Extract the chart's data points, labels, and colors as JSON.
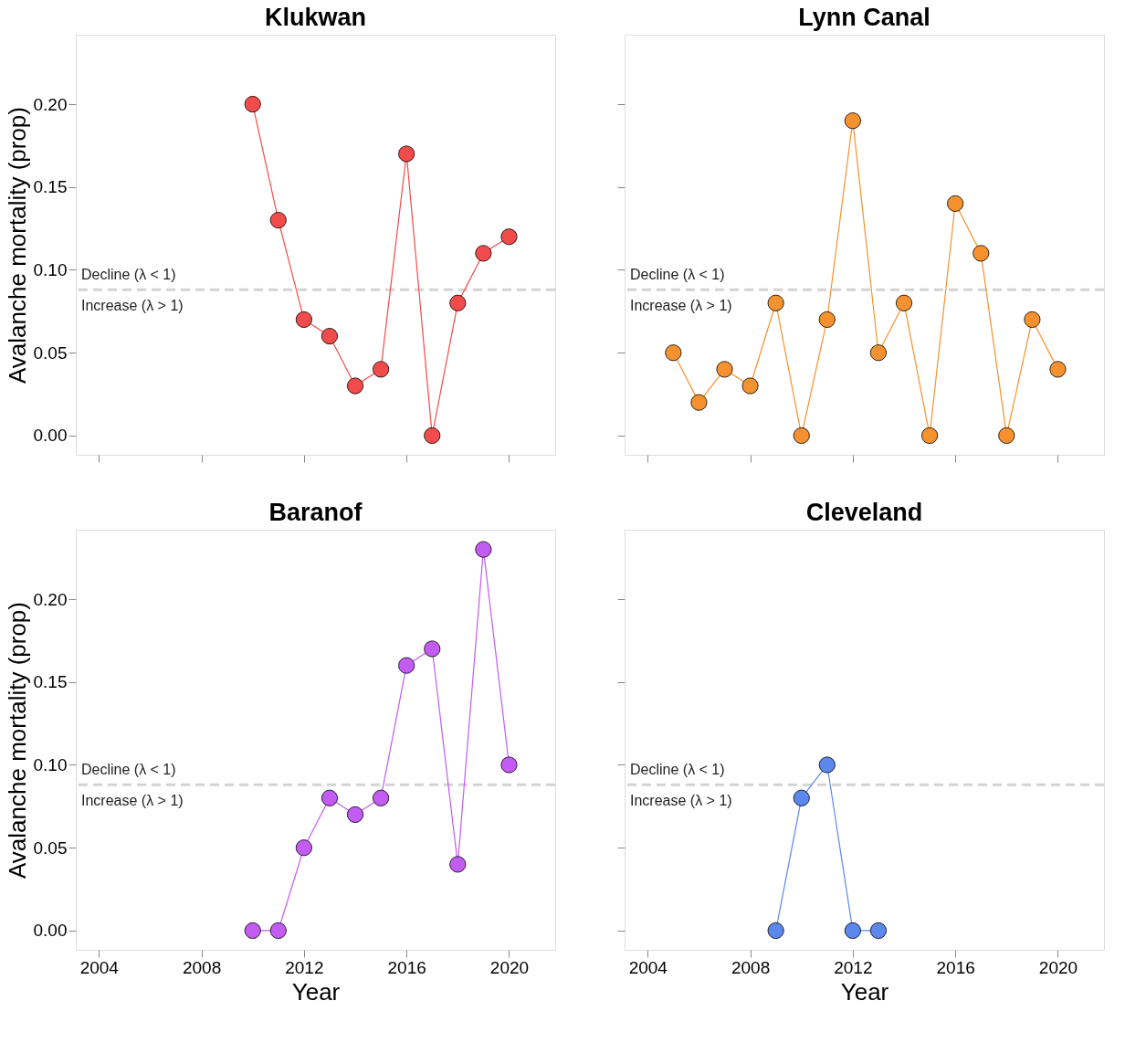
{
  "chart_data": [
    {
      "type": "line",
      "title": "Klukwan",
      "ylabel": "Avalanche mortality (prop)",
      "x": [
        2010,
        2011,
        2012,
        2013,
        2014,
        2015,
        2016,
        2017,
        2018,
        2019,
        2020
      ],
      "series": [
        {
          "color": "#f24b4b",
          "values": [
            0.2,
            0.13,
            0.07,
            0.06,
            0.03,
            0.04,
            0.17,
            0.0,
            0.08,
            0.11,
            0.12
          ]
        }
      ],
      "xlim": [
        2003.1,
        2021.8
      ],
      "xticks": [
        {
          "value": 2004,
          "label": null
        },
        {
          "value": 2008,
          "label": null
        },
        {
          "value": 2012,
          "label": null
        },
        {
          "value": 2016,
          "label": null
        },
        {
          "value": 2020,
          "label": null
        }
      ],
      "ylim": [
        -0.0116,
        0.2419
      ],
      "yticks": [
        {
          "value": 0,
          "label": "0.00"
        },
        {
          "value": 0.05,
          "label": "0.05"
        },
        {
          "value": 0.1,
          "label": "0.10"
        },
        {
          "value": 0.15,
          "label": "0.15"
        },
        {
          "value": 0.2,
          "label": "0.20"
        }
      ],
      "tick_labels": "y",
      "marker": "circle",
      "line_style": "solid",
      "ref_lines": [
        {
          "axis": "y",
          "value": 0.088,
          "label": "Decline (λ < 1)",
          "color": "#d3d3d3",
          "line_style": "dashed"
        }
      ],
      "annotations": [
        {
          "text": "Increase (λ > 1)"
        }
      ]
    },
    {
      "type": "line",
      "title": "Lynn Canal",
      "x": [
        2005,
        2006,
        2007,
        2008,
        2009,
        2010,
        2011,
        2012,
        2013,
        2014,
        2015,
        2016,
        2017,
        2018,
        2019,
        2020
      ],
      "series": [
        {
          "color": "#f5922f",
          "values": [
            0.05,
            0.02,
            0.04,
            0.03,
            0.08,
            0.0,
            0.07,
            0.19,
            0.05,
            0.08,
            0.0,
            0.14,
            0.11,
            0.0,
            0.07,
            0.04
          ]
        }
      ],
      "xlim": [
        2003.1,
        2021.8
      ],
      "xticks": [
        {
          "value": 2004,
          "label": null
        },
        {
          "value": 2008,
          "label": null
        },
        {
          "value": 2012,
          "label": null
        },
        {
          "value": 2016,
          "label": null
        },
        {
          "value": 2020,
          "label": null
        }
      ],
      "ylim": [
        -0.0116,
        0.2419
      ],
      "yticks": [
        {
          "value": 0.0,
          "label": null
        },
        {
          "value": 0.05,
          "label": null
        },
        {
          "value": 0.1,
          "label": null
        },
        {
          "value": 0.15,
          "label": null
        },
        {
          "value": 0.2,
          "label": null
        }
      ],
      "tick_labels": false,
      "marker": "circle",
      "line_style": "solid",
      "ref_lines": [
        {
          "axis": "y",
          "value": 0.088,
          "label": "Decline (λ < 1)",
          "color": "#d3d3d3",
          "line_style": "dashed"
        }
      ],
      "annotations": [
        {
          "text": "Increase (λ > 1)"
        }
      ]
    },
    {
      "type": "line",
      "title": "Baranof",
      "xlabel": "Year",
      "ylabel": "Avalanche mortality (prop)",
      "x": [
        2010,
        2011,
        2012,
        2013,
        2014,
        2015,
        2016,
        2017,
        2018,
        2019,
        2020
      ],
      "series": [
        {
          "color": "#c35cf2",
          "values": [
            0.0,
            0.0,
            0.05,
            0.08,
            0.07,
            0.08,
            0.16,
            0.17,
            0.04,
            0.23,
            0.1
          ]
        }
      ],
      "xlim": [
        2003.1,
        2021.8
      ],
      "xticks": [
        2004,
        2008,
        2012,
        2016,
        2020
      ],
      "ylim": [
        -0.0116,
        0.2419
      ],
      "yticks": [
        {
          "value": 0,
          "label": "0.00"
        },
        {
          "value": 0.05,
          "label": "0.05"
        },
        {
          "value": 0.1,
          "label": "0.10"
        },
        {
          "value": 0.15,
          "label": "0.15"
        },
        {
          "value": 0.2,
          "label": "0.20"
        }
      ],
      "marker": "circle",
      "line_style": "solid",
      "ref_lines": [
        {
          "axis": "y",
          "value": 0.088,
          "label": "Decline (λ < 1)",
          "color": "#d3d3d3",
          "line_style": "dashed"
        }
      ],
      "annotations": [
        {
          "text": "Increase (λ > 1)"
        }
      ]
    },
    {
      "type": "line",
      "title": "Cleveland",
      "xlabel": "Year",
      "x": [
        2009,
        2010,
        2011,
        2012,
        2013
      ],
      "series": [
        {
          "color": "#5c88ee",
          "values": [
            0.0,
            0.08,
            0.1,
            0.0,
            0.0
          ]
        }
      ],
      "xlim": [
        2003.1,
        2021.8
      ],
      "xticks": [
        2004,
        2008,
        2012,
        2016,
        2020
      ],
      "ylim": [
        -0.0116,
        0.2419
      ],
      "yticks": [
        {
          "value": 0.0,
          "label": null
        },
        {
          "value": 0.05,
          "label": null
        },
        {
          "value": 0.1,
          "label": null
        },
        {
          "value": 0.15,
          "label": null
        },
        {
          "value": 0.2,
          "label": null
        }
      ],
      "tick_labels": "x",
      "marker": "circle",
      "line_style": "solid",
      "ref_lines": [
        {
          "axis": "y",
          "value": 0.088,
          "label": "Decline (λ < 1)",
          "color": "#d3d3d3",
          "line_style": "dashed"
        }
      ],
      "annotations": [
        {
          "text": "Increase (λ > 1)"
        }
      ]
    }
  ]
}
